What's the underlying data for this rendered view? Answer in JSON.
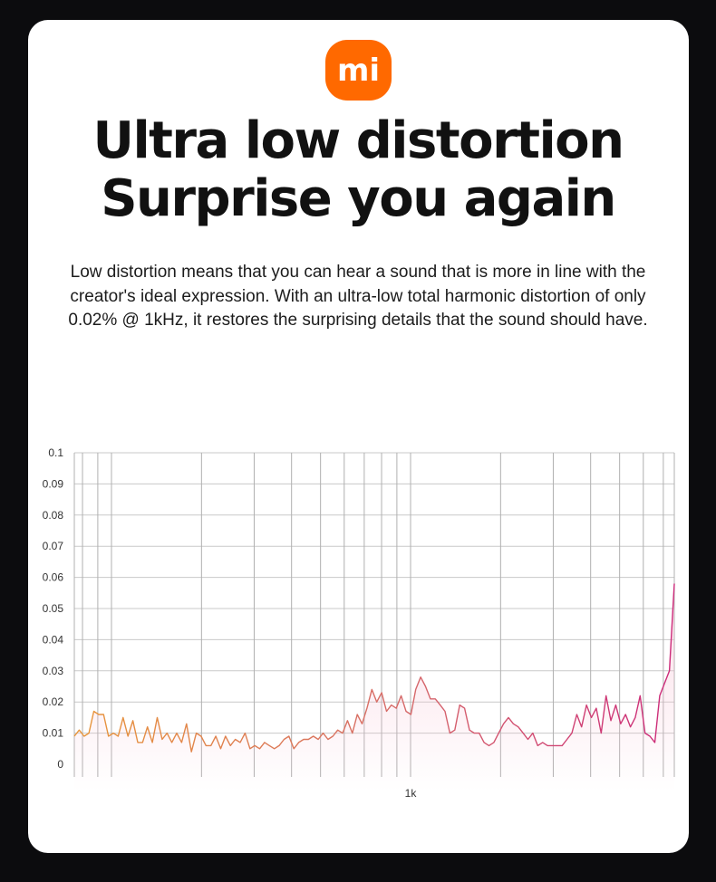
{
  "brand": {
    "logo_text": "mi",
    "color": "#ff6900"
  },
  "headline": {
    "line1": "Ultra low distortion",
    "line2": "Surprise you again"
  },
  "description": "Low distortion means that you can hear a sound that is more in line with the creator's ideal expression. With an ultra-low total harmonic distortion of only 0.02% @ 1kHz, it restores the surprising details that the sound should have.",
  "chart_data": {
    "type": "line",
    "title": "",
    "xlabel": "",
    "ylabel": "",
    "ylim": [
      0,
      0.1
    ],
    "y_ticks": [
      "0.1",
      "0.09",
      "0.08",
      "0.07",
      "0.06",
      "0.05",
      "0.04",
      "0.03",
      "0.02",
      "0.01",
      "0"
    ],
    "x_scale": "log",
    "x_tick_labels": [
      "1k"
    ],
    "grid": true,
    "colors": {
      "start": "#e8963a",
      "end": "#cc2a7a",
      "fill": "#f7c2d4"
    },
    "series": [
      {
        "values": [
          0.009,
          0.011,
          0.009,
          0.01,
          0.017,
          0.016,
          0.016,
          0.009,
          0.01,
          0.009,
          0.015,
          0.009,
          0.014,
          0.007,
          0.007,
          0.012,
          0.007,
          0.015,
          0.008,
          0.01,
          0.007,
          0.01,
          0.007,
          0.013,
          0.004,
          0.01,
          0.009,
          0.006,
          0.006,
          0.009,
          0.005,
          0.009,
          0.006,
          0.008,
          0.007,
          0.01,
          0.005,
          0.006,
          0.005,
          0.007,
          0.006,
          0.005,
          0.006,
          0.008,
          0.009,
          0.005,
          0.007,
          0.008,
          0.008,
          0.009,
          0.008,
          0.01,
          0.008,
          0.009,
          0.011,
          0.01,
          0.014,
          0.01,
          0.016,
          0.013,
          0.018,
          0.024,
          0.02,
          0.023,
          0.017,
          0.019,
          0.018,
          0.022,
          0.017,
          0.016,
          0.024,
          0.028,
          0.025,
          0.021,
          0.021,
          0.019,
          0.017,
          0.01,
          0.011,
          0.019,
          0.018,
          0.011,
          0.01,
          0.01,
          0.007,
          0.006,
          0.007,
          0.01,
          0.013,
          0.015,
          0.013,
          0.012,
          0.01,
          0.008,
          0.01,
          0.006,
          0.007,
          0.006,
          0.006,
          0.006,
          0.006,
          0.008,
          0.01,
          0.016,
          0.012,
          0.019,
          0.015,
          0.018,
          0.01,
          0.022,
          0.014,
          0.019,
          0.013,
          0.016,
          0.012,
          0.015,
          0.022,
          0.01,
          0.009,
          0.007,
          0.022,
          0.026,
          0.03,
          0.058
        ]
      }
    ]
  }
}
